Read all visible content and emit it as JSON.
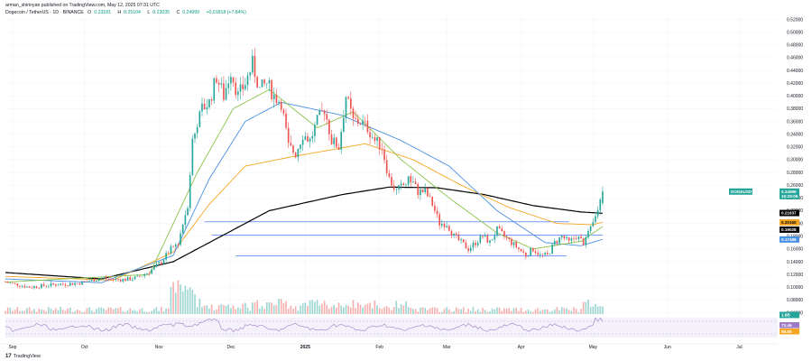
{
  "header": {
    "author_line": "arman_shirinyan published on TradingView.com, May 12, 2025 07:31 UTC",
    "symbol": "Dogecoin / TetherUS · 1D · BINANCE",
    "ohlc": [
      {
        "key": "O",
        "value": "0.23181"
      },
      {
        "key": "H",
        "value": "0.25104"
      },
      {
        "key": "L",
        "value": "0.23035"
      },
      {
        "key": "C",
        "value": "0.24999"
      },
      {
        "key": "",
        "value": "+0.01818 (+7.84%)"
      }
    ]
  },
  "logo": {
    "mark": "17",
    "text": "TradingView"
  },
  "colors": {
    "up": "#26a69a",
    "down": "#ef5350",
    "ma_black": "#000000",
    "ma_orange": "#f5a623",
    "ma_blue": "#4a90e2",
    "ma_green": "#8bc34a",
    "hline": "#2962ff",
    "rsi": "#9c7bc4"
  },
  "chart_data": {
    "type": "candlestick",
    "symbol": "DOGEUSDT",
    "y_axis_ticks": [
      "0.52000",
      "0.50000",
      "0.48000",
      "0.46000",
      "0.44000",
      "0.42000",
      "0.40000",
      "0.38000",
      "0.36000",
      "0.34000",
      "0.32000",
      "0.30000",
      "0.28000",
      "0.26000",
      "0.24000",
      "0.22000",
      "0.20000",
      "0.18000",
      "0.16000",
      "0.14000",
      "0.12000",
      "0.10000",
      "0.08000",
      "0.06000"
    ],
    "x_axis_labels": [
      "Sep",
      "Oct",
      "Nov",
      "Dec",
      "2025",
      "Feb",
      "Mar",
      "Apr",
      "May",
      "Jun",
      "Jul"
    ],
    "ylim": [
      0.055,
      0.525
    ],
    "x_range_days": [
      0,
      322
    ],
    "candles_days": [
      0,
      249
    ],
    "price_path": [
      [
        0,
        0.108
      ],
      [
        10,
        0.1
      ],
      [
        20,
        0.104
      ],
      [
        30,
        0.106
      ],
      [
        40,
        0.114
      ],
      [
        45,
        0.112
      ],
      [
        50,
        0.112
      ],
      [
        55,
        0.115
      ],
      [
        60,
        0.124
      ],
      [
        65,
        0.14
      ],
      [
        69,
        0.16
      ],
      [
        72,
        0.17
      ],
      [
        74,
        0.2
      ],
      [
        76,
        0.23
      ],
      [
        78,
        0.33
      ],
      [
        82,
        0.38
      ],
      [
        85,
        0.39
      ],
      [
        88,
        0.43
      ],
      [
        91,
        0.4
      ],
      [
        94,
        0.44
      ],
      [
        97,
        0.4
      ],
      [
        100,
        0.42
      ],
      [
        103,
        0.45
      ],
      [
        106,
        0.41
      ],
      [
        109,
        0.42
      ],
      [
        112,
        0.4
      ],
      [
        115,
        0.39
      ],
      [
        118,
        0.32
      ],
      [
        121,
        0.31
      ],
      [
        124,
        0.34
      ],
      [
        127,
        0.33
      ],
      [
        130,
        0.36
      ],
      [
        133,
        0.38
      ],
      [
        136,
        0.33
      ],
      [
        139,
        0.32
      ],
      [
        142,
        0.4
      ],
      [
        145,
        0.36
      ],
      [
        148,
        0.36
      ],
      [
        151,
        0.35
      ],
      [
        154,
        0.33
      ],
      [
        157,
        0.32
      ],
      [
        160,
        0.27
      ],
      [
        163,
        0.25
      ],
      [
        166,
        0.26
      ],
      [
        169,
        0.27
      ],
      [
        172,
        0.25
      ],
      [
        175,
        0.25
      ],
      [
        178,
        0.23
      ],
      [
        181,
        0.2
      ],
      [
        184,
        0.2
      ],
      [
        187,
        0.18
      ],
      [
        190,
        0.17
      ],
      [
        193,
        0.16
      ],
      [
        196,
        0.17
      ],
      [
        199,
        0.18
      ],
      [
        202,
        0.17
      ],
      [
        205,
        0.19
      ],
      [
        208,
        0.18
      ],
      [
        211,
        0.17
      ],
      [
        214,
        0.16
      ],
      [
        217,
        0.15
      ],
      [
        220,
        0.16
      ],
      [
        223,
        0.15
      ],
      [
        226,
        0.15
      ],
      [
        229,
        0.17
      ],
      [
        232,
        0.18
      ],
      [
        235,
        0.17
      ],
      [
        238,
        0.18
      ],
      [
        241,
        0.17
      ],
      [
        244,
        0.19
      ],
      [
        246,
        0.21
      ],
      [
        249,
        0.25
      ]
    ],
    "moving_averages": [
      {
        "color": "ma_black",
        "points": [
          [
            0,
            0.123
          ],
          [
            40,
            0.113
          ],
          [
            70,
            0.14
          ],
          [
            90,
            0.18
          ],
          [
            110,
            0.22
          ],
          [
            140,
            0.245
          ],
          [
            160,
            0.257
          ],
          [
            180,
            0.256
          ],
          [
            200,
            0.245
          ],
          [
            220,
            0.228
          ],
          [
            240,
            0.218
          ],
          [
            249,
            0.216
          ]
        ]
      },
      {
        "color": "ma_orange",
        "points": [
          [
            0,
            0.117
          ],
          [
            45,
            0.111
          ],
          [
            70,
            0.155
          ],
          [
            85,
            0.23
          ],
          [
            100,
            0.29
          ],
          [
            120,
            0.305
          ],
          [
            150,
            0.325
          ],
          [
            170,
            0.3
          ],
          [
            190,
            0.26
          ],
          [
            210,
            0.225
          ],
          [
            230,
            0.2
          ],
          [
            245,
            0.198
          ],
          [
            249,
            0.202
          ]
        ]
      },
      {
        "color": "ma_blue",
        "points": [
          [
            0,
            0.113
          ],
          [
            40,
            0.107
          ],
          [
            70,
            0.15
          ],
          [
            85,
            0.27
          ],
          [
            100,
            0.36
          ],
          [
            115,
            0.39
          ],
          [
            140,
            0.37
          ],
          [
            165,
            0.33
          ],
          [
            185,
            0.29
          ],
          [
            205,
            0.22
          ],
          [
            225,
            0.17
          ],
          [
            240,
            0.165
          ],
          [
            249,
            0.175
          ]
        ]
      },
      {
        "color": "ma_green",
        "points": [
          [
            0,
            0.108
          ],
          [
            60,
            0.12
          ],
          [
            80,
            0.28
          ],
          [
            95,
            0.38
          ],
          [
            110,
            0.41
          ],
          [
            130,
            0.35
          ],
          [
            145,
            0.375
          ],
          [
            165,
            0.3
          ],
          [
            185,
            0.24
          ],
          [
            205,
            0.185
          ],
          [
            220,
            0.16
          ],
          [
            240,
            0.172
          ],
          [
            249,
            0.195
          ]
        ]
      }
    ],
    "support_lines": [
      {
        "price": 0.2025,
        "from_day": 83,
        "to_day": 235
      },
      {
        "price": 0.182,
        "from_day": 86,
        "to_day": 249
      },
      {
        "price": 0.149,
        "from_day": 96,
        "to_day": 234
      }
    ],
    "price_labels": [
      {
        "value": "0.24999",
        "sub": "16:29:06",
        "bg": "#26a69a",
        "fg": "#ffffff",
        "price": 0.24999
      },
      {
        "value": "0.21637",
        "bg": "#000000",
        "fg": "#ffffff",
        "price": 0.21637
      },
      {
        "value": "0.20160",
        "bg": "#f5a623",
        "fg": "#000000",
        "price": 0.2016
      },
      {
        "value": "0.19028",
        "bg": "#000000",
        "fg": "#ffffff",
        "price": 0.19028
      },
      {
        "value": "0.17486",
        "bg": "#4a90e2",
        "fg": "#ffffff",
        "price": 0.17486
      },
      {
        "value": "1.6B",
        "bg": "#26a69a",
        "fg": "#ffffff",
        "price": 0.0565
      }
    ],
    "symbol_tag": "DOGEUSDT",
    "rsi_labels": [
      {
        "value": "73.46",
        "bg": "#9c7bc4"
      },
      {
        "value": "59.55",
        "bg": "#f5a623"
      }
    ]
  }
}
